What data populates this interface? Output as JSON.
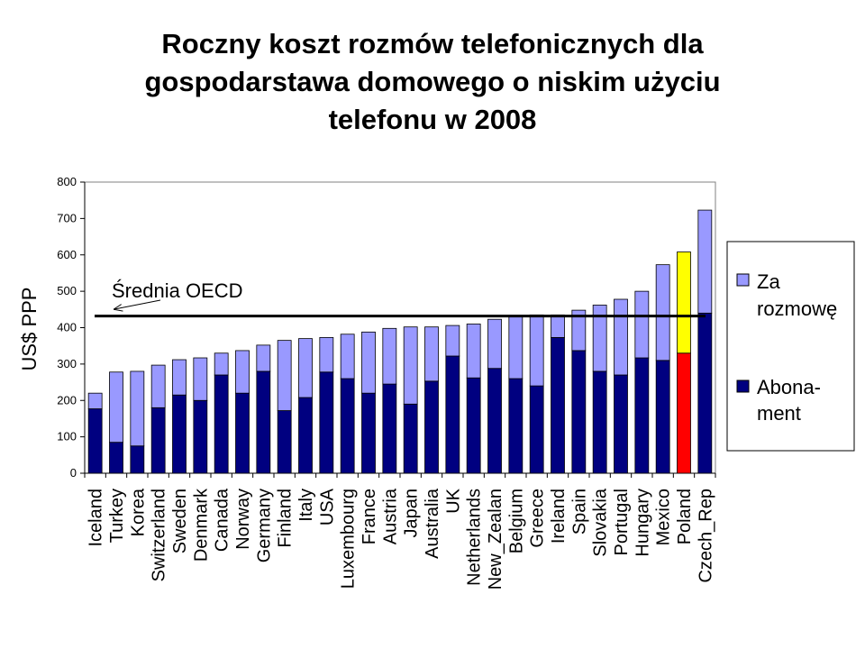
{
  "title_lines": [
    "Roczny koszt rozmów telefonicznych dla",
    "gospodarstawa domowego o niskim użyciu",
    "telefonu w 2008"
  ],
  "chart_data": {
    "type": "bar",
    "stacked": true,
    "title": "Roczny koszt rozmów telefonicznych dla gospodarstawa domowego o niskim użyciu telefonu w 2008",
    "ylabel": "US$ PPP",
    "xlabel": "",
    "ylim": [
      0,
      800
    ],
    "yticks": [
      0,
      100,
      200,
      300,
      400,
      500,
      600,
      700,
      800
    ],
    "grid": false,
    "legend_position": "right",
    "categories": [
      "Iceland",
      "Turkey",
      "Korea",
      "Switzerland",
      "Sweden",
      "Denmark",
      "Canada",
      "Norway",
      "Germany",
      "Finland",
      "Italy",
      "USA",
      "Luxembourg",
      "France",
      "Austria",
      "Japan",
      "Australia",
      "UK",
      "Netherlands",
      "New_Zealan",
      "Belgium",
      "Greece",
      "Ireland",
      "Spain",
      "Slovakia",
      "Portugal",
      "Hungary",
      "Mexico",
      "Poland",
      "Czech_Rep"
    ],
    "series": [
      {
        "name": "Abona-\nment",
        "color": "#000080",
        "values": [
          177,
          85,
          75,
          180,
          215,
          200,
          270,
          220,
          280,
          172,
          208,
          278,
          260,
          220,
          245,
          190,
          253,
          322,
          262,
          288,
          260,
          240,
          373,
          337,
          280,
          270,
          317,
          310,
          330,
          440
        ]
      },
      {
        "name": "Za\nrozmowę",
        "color": "#9999ff",
        "values": [
          43,
          193,
          205,
          117,
          97,
          117,
          60,
          117,
          72,
          193,
          162,
          95,
          122,
          168,
          153,
          212,
          149,
          84,
          148,
          135,
          173,
          195,
          62,
          111,
          182,
          208,
          183,
          263,
          278,
          283
        ]
      }
    ],
    "highlight": {
      "category": "Poland",
      "colors": [
        "#ff0000",
        "#ffff00"
      ]
    },
    "reference_line": {
      "label": "Średnia OECD",
      "value": 432
    }
  }
}
